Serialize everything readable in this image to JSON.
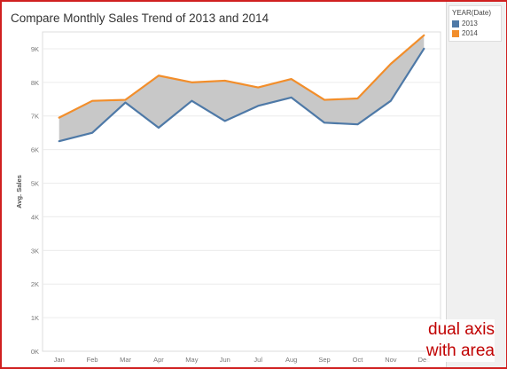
{
  "header": {
    "title": "Compare Monthly Sales Trend of 2013 and 2014"
  },
  "legend": {
    "title": "YEAR(Date)",
    "items": [
      {
        "label": "2013",
        "color": "#4e79a7"
      },
      {
        "label": "2014",
        "color": "#f28e2b"
      }
    ]
  },
  "annotation": {
    "line1": "dual axis",
    "line2": "with area"
  },
  "chart_data": {
    "type": "line",
    "title": "Compare Monthly Sales Trend of 2013 and 2014",
    "xlabel": "",
    "ylabel": "Avg. Sales",
    "categories": [
      "Jan",
      "Feb",
      "Mar",
      "Apr",
      "May",
      "Jun",
      "Jul",
      "Aug",
      "Sep",
      "Oct",
      "Nov",
      "Dec"
    ],
    "y_ticks": [
      "0K",
      "1K",
      "2K",
      "3K",
      "4K",
      "5K",
      "6K",
      "7K",
      "8K",
      "9K"
    ],
    "ylim": [
      0,
      9500
    ],
    "grid": true,
    "legend_position": "top-right",
    "area_between_series": {
      "fill": "#c8c8c8"
    },
    "series": [
      {
        "name": "2013",
        "color": "#4e79a7",
        "values": [
          6250,
          6500,
          7400,
          6650,
          7450,
          6850,
          7300,
          7550,
          6800,
          6750,
          7450,
          9000
        ]
      },
      {
        "name": "2014",
        "color": "#f28e2b",
        "values": [
          6950,
          7450,
          7480,
          8200,
          8000,
          8050,
          7850,
          8100,
          7480,
          7520,
          8550,
          9400
        ]
      }
    ]
  }
}
